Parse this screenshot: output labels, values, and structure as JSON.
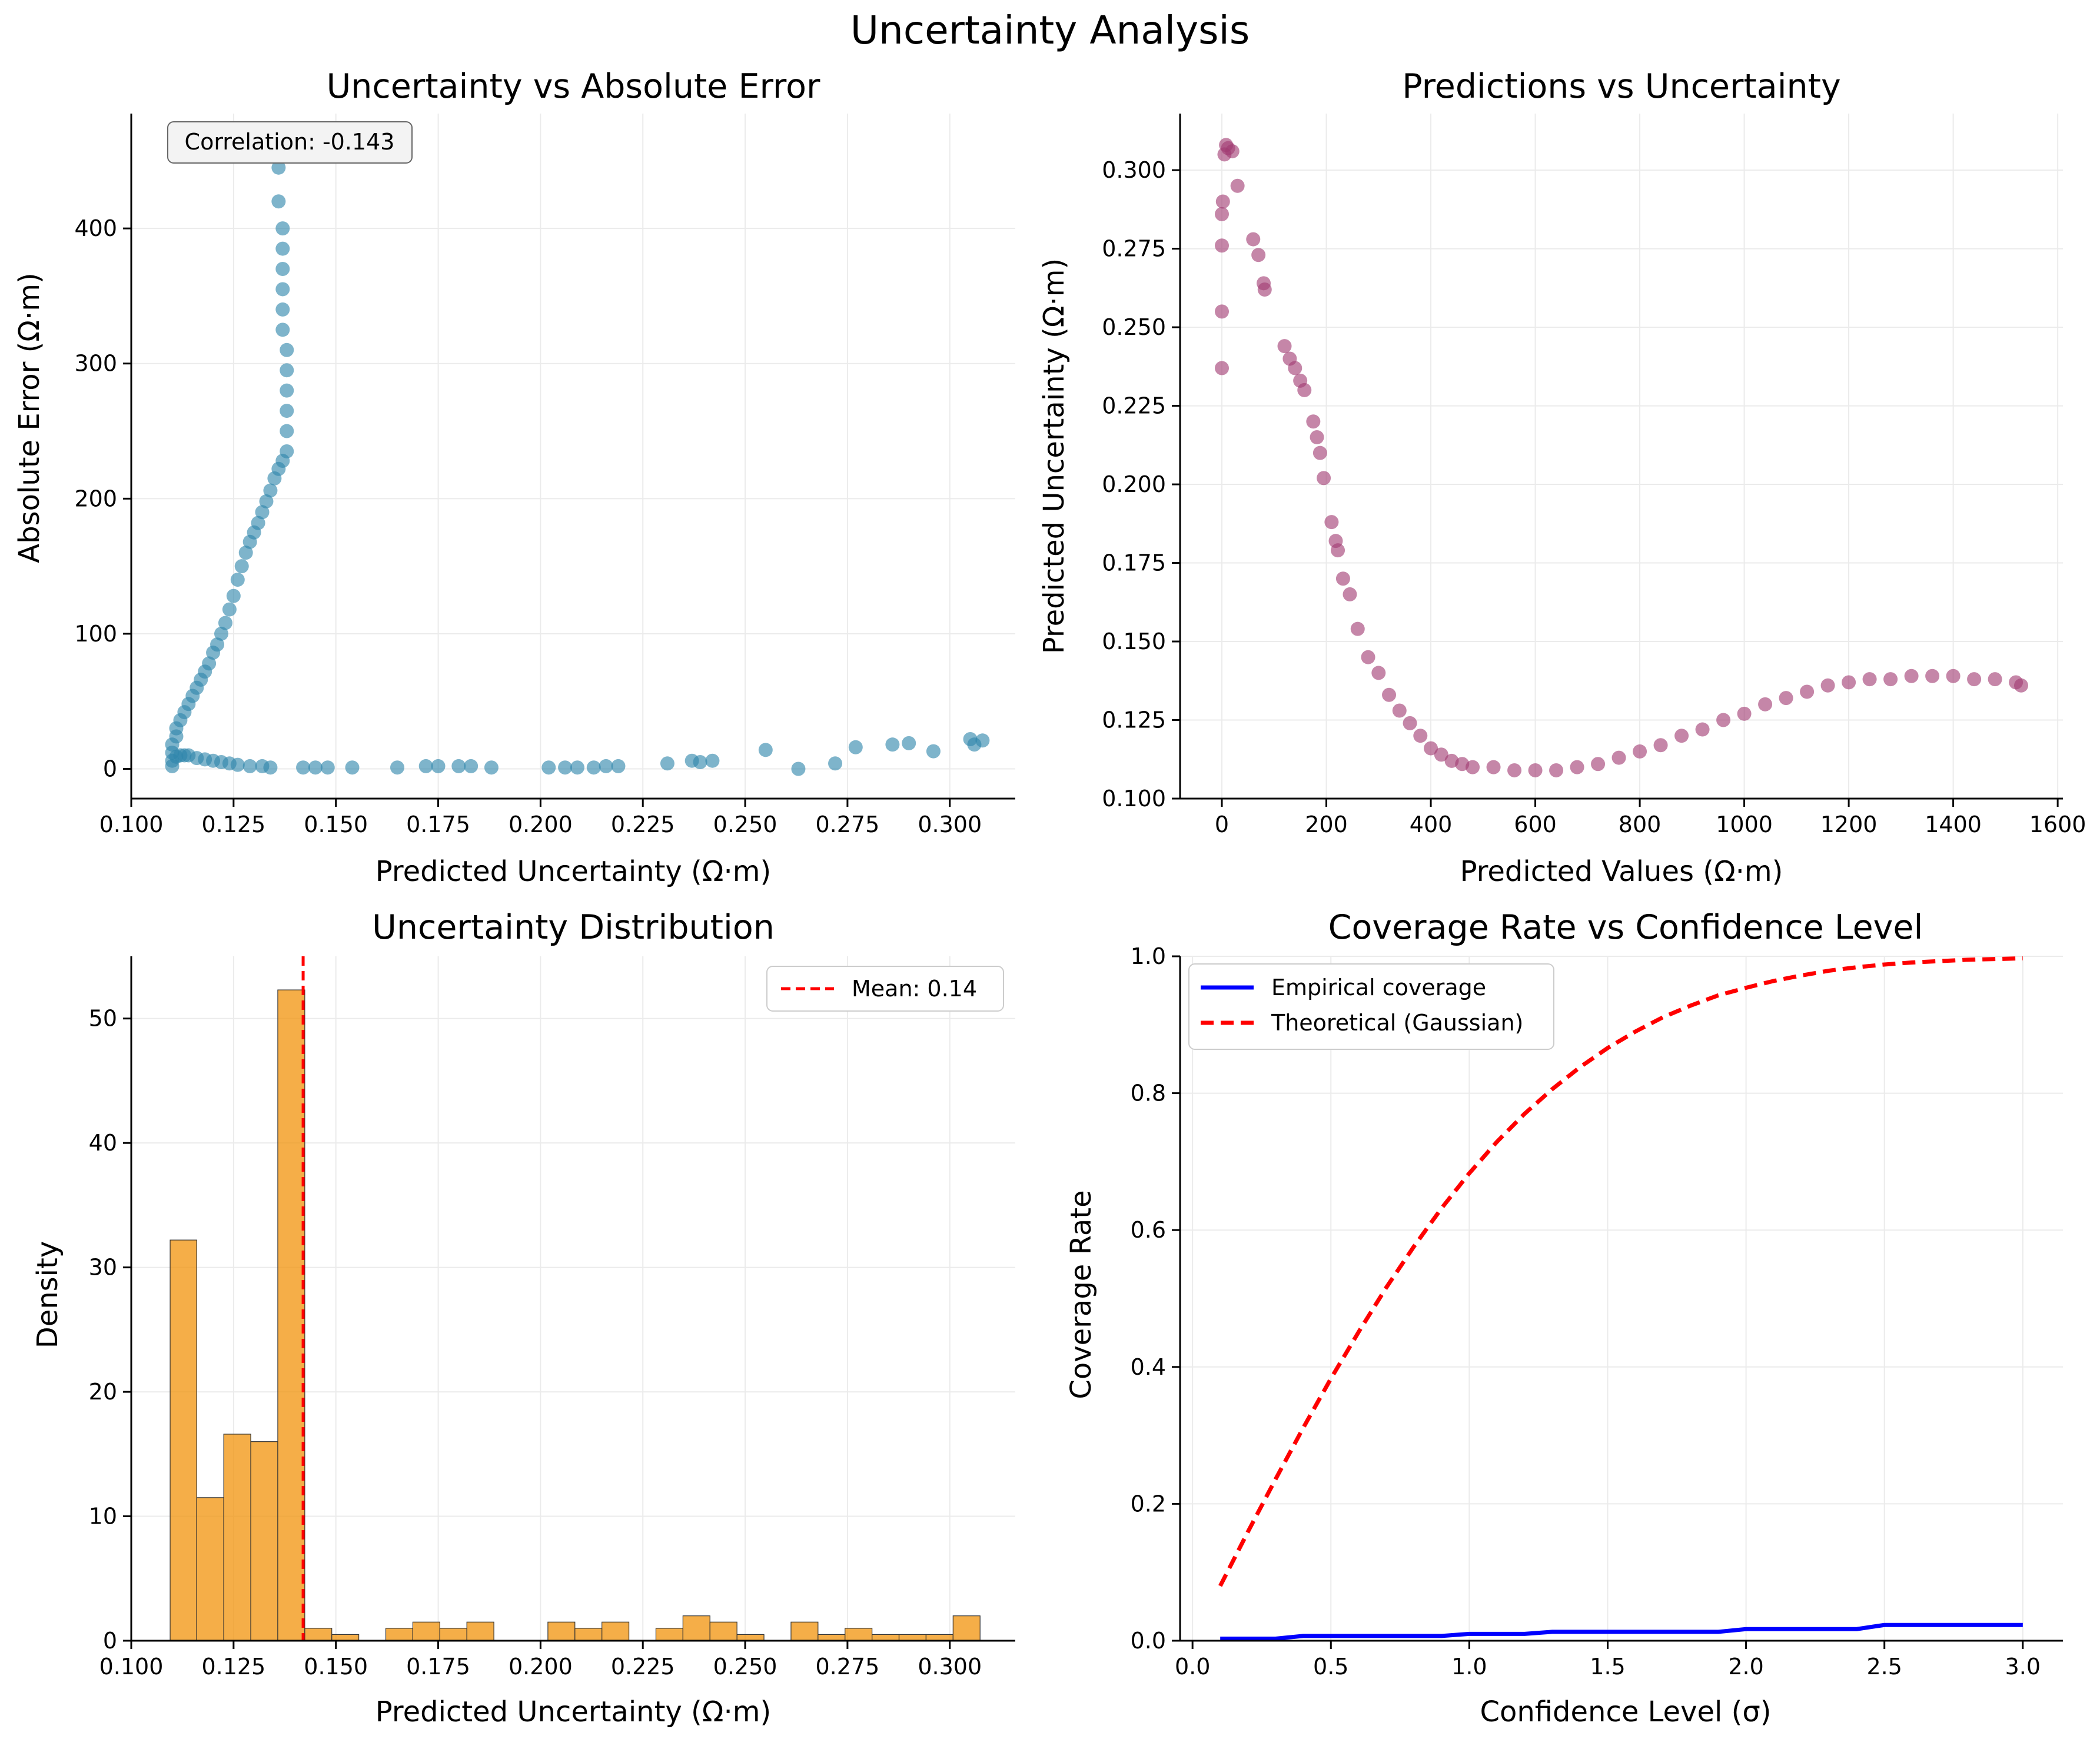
{
  "figure": {
    "title": "Uncertainty Analysis"
  },
  "colors": {
    "scatter1": "#2E86AB",
    "scatter2": "#A23B72",
    "hist": "#F18F01",
    "mean_line": "#FF0000",
    "empirical": "#0000FF",
    "theoretical": "#FF0000",
    "grid": "#EBEBEB"
  },
  "chart_data": [
    {
      "type": "scatter",
      "title": "Uncertainty vs Absolute Error",
      "xlabel": "Predicted Uncertainty (Ω·m)",
      "ylabel": "Absolute Error (Ω·m)",
      "xlim": [
        0.1,
        0.316
      ],
      "ylim": [
        -22,
        485
      ],
      "xticks": [
        0.1,
        0.125,
        0.15,
        0.175,
        0.2,
        0.225,
        0.25,
        0.275,
        0.3
      ],
      "xtick_labels": [
        "0.100",
        "0.125",
        "0.150",
        "0.175",
        "0.200",
        "0.225",
        "0.250",
        "0.275",
        "0.300"
      ],
      "yticks": [
        0,
        100,
        200,
        300,
        400
      ],
      "ytick_labels": [
        "0",
        "100",
        "200",
        "300",
        "400"
      ],
      "grid": true,
      "annotation": "Correlation: -0.143",
      "x": [
        0.11,
        0.11,
        0.11,
        0.11,
        0.111,
        0.111,
        0.112,
        0.113,
        0.114,
        0.115,
        0.116,
        0.117,
        0.118,
        0.119,
        0.12,
        0.121,
        0.122,
        0.123,
        0.124,
        0.125,
        0.126,
        0.127,
        0.128,
        0.129,
        0.13,
        0.131,
        0.132,
        0.133,
        0.134,
        0.135,
        0.136,
        0.137,
        0.138,
        0.138,
        0.138,
        0.138,
        0.138,
        0.138,
        0.137,
        0.137,
        0.137,
        0.137,
        0.137,
        0.137,
        0.136,
        0.136,
        0.111,
        0.112,
        0.113,
        0.114,
        0.116,
        0.118,
        0.12,
        0.122,
        0.124,
        0.126,
        0.129,
        0.132,
        0.134,
        0.142,
        0.145,
        0.148,
        0.154,
        0.165,
        0.172,
        0.175,
        0.18,
        0.183,
        0.188,
        0.202,
        0.206,
        0.209,
        0.213,
        0.216,
        0.219,
        0.231,
        0.237,
        0.239,
        0.242,
        0.255,
        0.263,
        0.272,
        0.277,
        0.286,
        0.29,
        0.296,
        0.305,
        0.306,
        0.308
      ],
      "y": [
        2,
        6,
        12,
        18,
        24,
        30,
        36,
        42,
        48,
        54,
        60,
        66,
        72,
        78,
        86,
        92,
        100,
        108,
        118,
        128,
        140,
        150,
        160,
        168,
        175,
        182,
        190,
        198,
        206,
        215,
        222,
        228,
        235,
        250,
        265,
        280,
        295,
        310,
        325,
        340,
        355,
        370,
        385,
        400,
        420,
        445,
        9,
        10,
        10,
        10,
        8,
        7,
        6,
        5,
        4,
        3,
        2,
        2,
        1,
        1,
        1,
        1,
        1,
        1,
        2,
        2,
        2,
        2,
        1,
        1,
        1,
        1,
        1,
        2,
        2,
        4,
        6,
        5,
        6,
        14,
        0,
        4,
        16,
        18,
        19,
        13,
        22,
        18,
        21
      ]
    },
    {
      "type": "scatter",
      "title": "Predictions vs Uncertainty",
      "xlabel": "Predicted Values (Ω·m)",
      "ylabel": "Predicted Uncertainty (Ω·m)",
      "xlim": [
        -80,
        1610
      ],
      "ylim": [
        0.1,
        0.318
      ],
      "xticks": [
        0,
        200,
        400,
        600,
        800,
        1000,
        1200,
        1400,
        1600
      ],
      "xtick_labels": [
        "0",
        "200",
        "400",
        "600",
        "800",
        "1000",
        "1200",
        "1400",
        "1600"
      ],
      "yticks": [
        0.1,
        0.125,
        0.15,
        0.175,
        0.2,
        0.225,
        0.25,
        0.275,
        0.3
      ],
      "ytick_labels": [
        "0.100",
        "0.125",
        "0.150",
        "0.175",
        "0.200",
        "0.225",
        "0.250",
        "0.275",
        "0.300"
      ],
      "grid": true,
      "x": [
        0,
        0,
        0,
        0,
        2,
        5,
        8,
        12,
        20,
        30,
        60,
        70,
        80,
        82,
        120,
        130,
        140,
        150,
        158,
        175,
        182,
        188,
        195,
        210,
        218,
        222,
        232,
        245,
        260,
        280,
        300,
        320,
        340,
        360,
        380,
        400,
        420,
        440,
        460,
        480,
        520,
        560,
        600,
        640,
        680,
        720,
        760,
        800,
        840,
        880,
        920,
        960,
        1000,
        1040,
        1080,
        1120,
        1160,
        1200,
        1240,
        1280,
        1320,
        1360,
        1400,
        1440,
        1480,
        1520,
        1530
      ],
      "y": [
        0.237,
        0.255,
        0.276,
        0.286,
        0.29,
        0.305,
        0.308,
        0.307,
        0.306,
        0.295,
        0.278,
        0.273,
        0.264,
        0.262,
        0.244,
        0.24,
        0.237,
        0.233,
        0.23,
        0.22,
        0.215,
        0.21,
        0.202,
        0.188,
        0.182,
        0.179,
        0.17,
        0.165,
        0.154,
        0.145,
        0.14,
        0.133,
        0.128,
        0.124,
        0.12,
        0.116,
        0.114,
        0.112,
        0.111,
        0.11,
        0.11,
        0.109,
        0.109,
        0.109,
        0.11,
        0.111,
        0.113,
        0.115,
        0.117,
        0.12,
        0.122,
        0.125,
        0.127,
        0.13,
        0.132,
        0.134,
        0.136,
        0.137,
        0.138,
        0.138,
        0.139,
        0.139,
        0.139,
        0.138,
        0.138,
        0.137,
        0.136
      ]
    },
    {
      "type": "bar",
      "title": "Uncertainty Distribution",
      "xlabel": "Predicted Uncertainty (Ω·m)",
      "ylabel": "Density",
      "xlim": [
        0.1,
        0.316
      ],
      "ylim": [
        0,
        55
      ],
      "xticks": [
        0.1,
        0.125,
        0.15,
        0.175,
        0.2,
        0.225,
        0.25,
        0.275,
        0.3
      ],
      "xtick_labels": [
        "0.100",
        "0.125",
        "0.150",
        "0.175",
        "0.200",
        "0.225",
        "0.250",
        "0.275",
        "0.300"
      ],
      "yticks": [
        0,
        10,
        20,
        30,
        40,
        50
      ],
      "ytick_labels": [
        "0",
        "10",
        "20",
        "30",
        "40",
        "50"
      ],
      "grid": true,
      "bin_edges": [
        0.1095,
        0.116,
        0.1226,
        0.1292,
        0.1358,
        0.1424,
        0.149,
        0.1556,
        0.1622,
        0.1688,
        0.1754,
        0.182,
        0.1886,
        0.1952,
        0.2018,
        0.2084,
        0.215,
        0.2216,
        0.2282,
        0.2348,
        0.2414,
        0.248,
        0.2546,
        0.2612,
        0.2678,
        0.2744,
        0.281,
        0.2876,
        0.2942,
        0.3008,
        0.3074
      ],
      "values": [
        32.2,
        11.5,
        16.6,
        16.0,
        52.3,
        1.0,
        0.5,
        0,
        1.0,
        1.5,
        1.0,
        1.5,
        0,
        0,
        1.5,
        1.0,
        1.5,
        0,
        1.0,
        2.0,
        1.5,
        0.5,
        0,
        1.5,
        0.5,
        1.0,
        0.5,
        0.5,
        0.5,
        2.0
      ],
      "mean_line": {
        "x": 0.142,
        "label": "Mean: 0.14"
      },
      "legend": "top-right"
    },
    {
      "type": "line",
      "title": "Coverage Rate vs Confidence Level",
      "xlabel": "Confidence Level (σ)",
      "ylabel": "Coverage Rate",
      "xlim": [
        -0.045,
        3.145
      ],
      "ylim": [
        0,
        1.0
      ],
      "xticks": [
        0,
        0.5,
        1.0,
        1.5,
        2.0,
        2.5,
        3.0
      ],
      "xtick_labels": [
        "0.0",
        "0.5",
        "1.0",
        "1.5",
        "2.0",
        "2.5",
        "3.0"
      ],
      "yticks": [
        0,
        0.2,
        0.4,
        0.6,
        0.8,
        1.0
      ],
      "ytick_labels": [
        "0.0",
        "0.2",
        "0.4",
        "0.6",
        "0.8",
        "1.0"
      ],
      "grid": true,
      "legend": "top-left",
      "x": [
        0.1,
        0.2,
        0.3,
        0.4,
        0.5,
        0.6,
        0.7,
        0.8,
        0.9,
        1.0,
        1.1,
        1.2,
        1.3,
        1.4,
        1.5,
        1.6,
        1.7,
        1.8,
        1.9,
        2.0,
        2.1,
        2.2,
        2.3,
        2.4,
        2.5,
        2.6,
        2.7,
        2.8,
        2.9,
        3.0
      ],
      "series": [
        {
          "name": "Empirical coverage",
          "values": [
            0.003,
            0.003,
            0.003,
            0.007,
            0.007,
            0.007,
            0.007,
            0.007,
            0.007,
            0.01,
            0.01,
            0.01,
            0.013,
            0.013,
            0.013,
            0.013,
            0.013,
            0.013,
            0.013,
            0.017,
            0.017,
            0.017,
            0.017,
            0.017,
            0.023,
            0.023,
            0.023,
            0.023,
            0.023,
            0.023
          ]
        },
        {
          "name": "Theoretical (Gaussian)",
          "values": [
            0.08,
            0.159,
            0.236,
            0.311,
            0.383,
            0.451,
            0.516,
            0.576,
            0.632,
            0.683,
            0.729,
            0.77,
            0.806,
            0.838,
            0.866,
            0.89,
            0.911,
            0.928,
            0.943,
            0.954,
            0.964,
            0.972,
            0.979,
            0.984,
            0.988,
            0.991,
            0.993,
            0.995,
            0.996,
            0.997
          ]
        }
      ]
    }
  ]
}
